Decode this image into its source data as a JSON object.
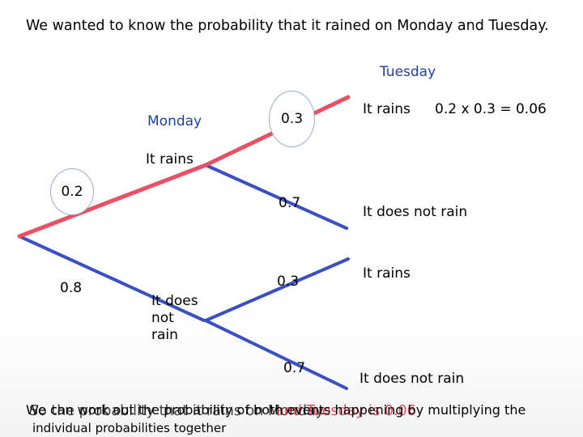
{
  "title": "We wanted to know the probability that it rained on Monday and Tuesday.",
  "day_labels": {
    "tuesday": "Tuesday",
    "monday": "Monday"
  },
  "monday_branches": {
    "rain_prob": "0.2",
    "no_rain_prob": "0.8",
    "rain_label": "It rains",
    "no_rain_label_lines": [
      "It does",
      "not",
      "rain"
    ]
  },
  "tuesday_branches": {
    "upper": {
      "rain_prob": "0.3",
      "no_rain_prob": "0.7",
      "rain_label": "It rains",
      "no_rain_label": "It does not rain",
      "result": "0.2 x 0.3 = 0.06"
    },
    "lower": {
      "rain_prob": "0.3",
      "no_rain_prob": "0.7",
      "rain_label": "It rains",
      "no_rain_label": "It does not rain"
    }
  },
  "footer": {
    "line1": "We can work out the probability of both events happening by multiplying the",
    "line2": "individual probabilities together",
    "overlay_start": "So the probability that it rains on Monday",
    "overlay_end": "and Tuesday is 0.06"
  },
  "colors": {
    "highlight_path": "#ec4f64",
    "tree_branch": "#3a4fc4",
    "circle_border": "#9aaad2"
  }
}
